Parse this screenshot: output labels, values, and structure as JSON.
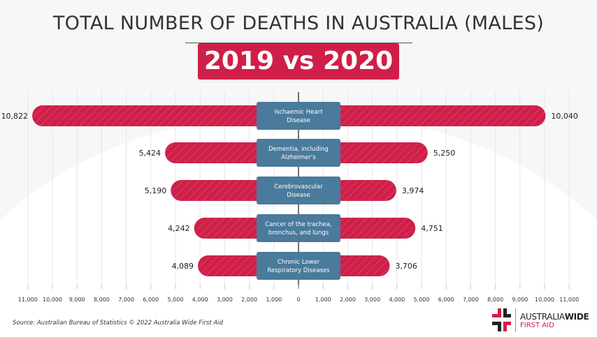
{
  "chart_data": {
    "type": "bar",
    "title": "TOTAL NUMBER OF DEATHS IN AUSTRALIA (MALES)",
    "subtitle": "2019 vs 2020",
    "categories": [
      "Ischaemic Heart Disease",
      "Dementia, including Alzheimer's",
      "Cerebrovascular Disease",
      "Cancer of the trachea, bronchus, and lungs",
      "Chronic Lower Respiratory Diseases"
    ],
    "category_lines": [
      [
        "Ischaemic Heart",
        "Disease"
      ],
      [
        "Dementia, including",
        "Alzheimer's"
      ],
      [
        "Cerebrovascular",
        "Disease"
      ],
      [
        "Cancer of the trachea,",
        "bronchus, and lungs"
      ],
      [
        "Chronic Lower",
        "Respiratory Diseases"
      ]
    ],
    "series": [
      {
        "name": "2019",
        "side": "left",
        "values": [
          10822,
          5424,
          5190,
          4242,
          4089
        ],
        "labels": [
          "10,822",
          "5,424",
          "5,190",
          "4,242",
          "4,089"
        ]
      },
      {
        "name": "2020",
        "side": "right",
        "values": [
          10040,
          5250,
          3974,
          4751,
          3706
        ],
        "labels": [
          "10,040",
          "5,250",
          "3,974",
          "4,751",
          "3,706"
        ]
      }
    ],
    "xlim": [
      -11000,
      11000
    ],
    "xticks": [
      -11000,
      -10000,
      -9000,
      -8000,
      -7000,
      -6000,
      -5000,
      -4000,
      -3000,
      -2000,
      -1000,
      0,
      1000,
      2000,
      3000,
      4000,
      5000,
      6000,
      7000,
      8000,
      9000,
      10000,
      11000
    ],
    "xtick_labels": [
      "11,000",
      "10,000",
      "9,000",
      "8,000",
      "7,000",
      "6,000",
      "5,000",
      "4,000",
      "3,000",
      "2,000",
      "1,000",
      "0",
      "1,000",
      "2,000",
      "3,000",
      "4,000",
      "5,000",
      "6,000",
      "7,000",
      "8,000",
      "9,000",
      "10,000",
      "11,000"
    ],
    "grid": true,
    "colors": {
      "bar": "#cf1f48",
      "label_box": "#4a7a9c"
    }
  },
  "footer": {
    "source": "Source: Australian Bureau of Statistics © 2022 Australia Wide First Aid"
  },
  "logo": {
    "brand_light": "AUSTRALIA",
    "brand_bold": "WIDE",
    "sub": "FIRST AID"
  }
}
